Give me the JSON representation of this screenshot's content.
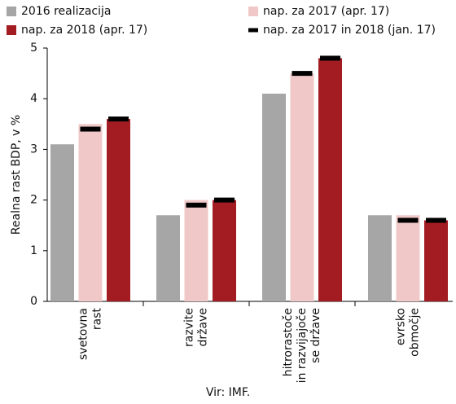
{
  "chart_data": {
    "type": "bar",
    "ylabel": "Realna rast BDP, v %",
    "source": "Vir: IMF.",
    "categories": [
      [
        "svetovna",
        "rast"
      ],
      [
        "razvite",
        "države"
      ],
      [
        "hitrorastoče",
        "in razvijajoče",
        "se države"
      ],
      [
        "evrsko",
        "območje"
      ]
    ],
    "series": [
      {
        "name": "2016 realizacija",
        "color": "#a6a6a6",
        "values": [
          3.1,
          1.7,
          4.1,
          1.7
        ]
      },
      {
        "name": "nap. za 2017 (apr. 17)",
        "color": "#f0c8c8",
        "values": [
          3.5,
          2.0,
          4.5,
          1.7
        ]
      },
      {
        "name": "nap. za 2018 (apr. 17)",
        "color": "#a31c22",
        "values": [
          3.6,
          2.0,
          4.8,
          1.6
        ]
      },
      {
        "name": "nap. za 2017 in 2018 (jan. 17)",
        "color": "#000000",
        "type": "marker",
        "values": [
          [
            3.4,
            3.6
          ],
          [
            1.9,
            2.0
          ],
          [
            4.5,
            4.8
          ],
          [
            1.6,
            1.6
          ]
        ]
      }
    ],
    "ylim": [
      0,
      5
    ],
    "yticks": [
      0,
      1,
      2,
      3,
      4,
      5
    ]
  }
}
